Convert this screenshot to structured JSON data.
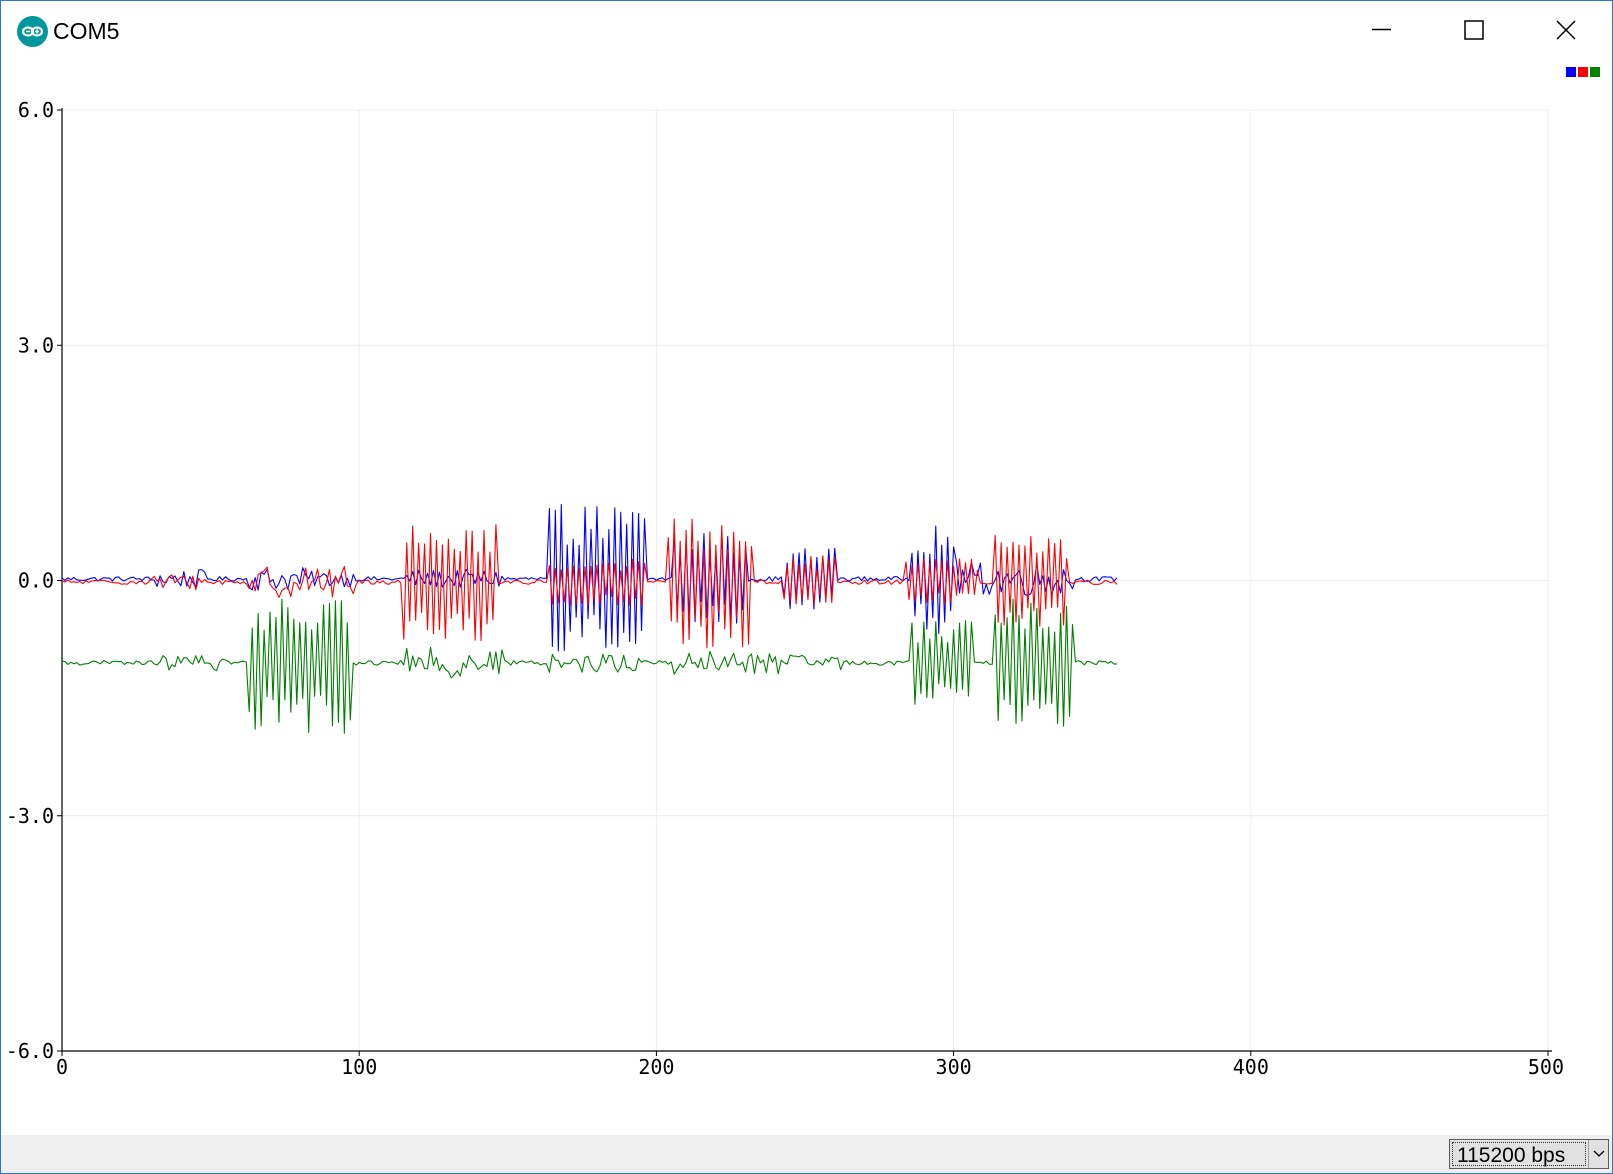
{
  "window": {
    "title": "COM5",
    "icon": "arduino-infinity-icon",
    "controls": [
      "minimize-icon",
      "maximize-icon",
      "close-icon"
    ]
  },
  "legend": {
    "colors": [
      "#0000ff",
      "#ff0000",
      "#008000"
    ]
  },
  "statusbar": {
    "baud_rate": "115200 bps"
  },
  "chart_data": {
    "type": "line",
    "title": "",
    "xlabel": "",
    "ylabel": "",
    "xlim": [
      0,
      500
    ],
    "ylim": [
      -6.0,
      6.0
    ],
    "x_ticks": [
      0,
      100,
      200,
      300,
      400,
      500
    ],
    "x_tick_labels": [
      "0",
      "100",
      "200",
      "300",
      "400",
      "500"
    ],
    "y_ticks": [
      6.0,
      3.0,
      0.0,
      -3.0,
      -6.0
    ],
    "y_tick_labels": [
      "6.0",
      "3.0",
      "0.0",
      "-3.0",
      "-6.0"
    ],
    "grid": true,
    "legend_position": "top-right",
    "series_count_visible_points": 356,
    "series": [
      {
        "color": "#0000ff",
        "baseline": 0.02,
        "bursts": [
          {
            "x_start": 30,
            "x_end": 48,
            "amplitude": 0.12
          },
          {
            "x_start": 63,
            "x_end": 82,
            "amplitude": 0.15
          },
          {
            "x_start": 84,
            "x_end": 98,
            "amplitude": 0.1
          },
          {
            "x_start": 116,
            "x_end": 148,
            "amplitude": 0.12
          },
          {
            "x_start": 164,
            "x_end": 196,
            "amplitude": 0.95
          },
          {
            "x_start": 206,
            "x_end": 230,
            "amplitude": 0.6
          },
          {
            "x_start": 243,
            "x_end": 260,
            "amplitude": 0.4
          },
          {
            "x_start": 286,
            "x_end": 300,
            "amplitude": 0.7
          },
          {
            "x_start": 300,
            "x_end": 340,
            "amplitude": 0.22
          }
        ]
      },
      {
        "color": "#ff0000",
        "baseline": -0.02,
        "bursts": [
          {
            "x_start": 30,
            "x_end": 48,
            "amplitude": 0.1
          },
          {
            "x_start": 63,
            "x_end": 98,
            "amplitude": 0.2
          },
          {
            "x_start": 115,
            "x_end": 146,
            "amplitude": 0.8
          },
          {
            "x_start": 164,
            "x_end": 196,
            "amplitude": 0.3
          },
          {
            "x_start": 204,
            "x_end": 232,
            "amplitude": 0.85
          },
          {
            "x_start": 243,
            "x_end": 260,
            "amplitude": 0.35
          },
          {
            "x_start": 284,
            "x_end": 308,
            "amplitude": 0.3
          },
          {
            "x_start": 314,
            "x_end": 338,
            "amplitude": 0.6
          }
        ]
      },
      {
        "color": "#008000",
        "baseline": -1.05,
        "bursts": [
          {
            "x_start": 34,
            "x_end": 55,
            "amplitude": 0.1
          },
          {
            "x_start": 63,
            "x_end": 97,
            "amplitude": 0.9
          },
          {
            "x_start": 116,
            "x_end": 148,
            "amplitude": 0.2
          },
          {
            "x_start": 164,
            "x_end": 196,
            "amplitude": 0.12
          },
          {
            "x_start": 206,
            "x_end": 242,
            "amplitude": 0.15
          },
          {
            "x_start": 243,
            "x_end": 262,
            "amplitude": 0.1
          },
          {
            "x_start": 286,
            "x_end": 306,
            "amplitude": 0.55
          },
          {
            "x_start": 314,
            "x_end": 340,
            "amplitude": 0.85
          }
        ]
      }
    ]
  }
}
